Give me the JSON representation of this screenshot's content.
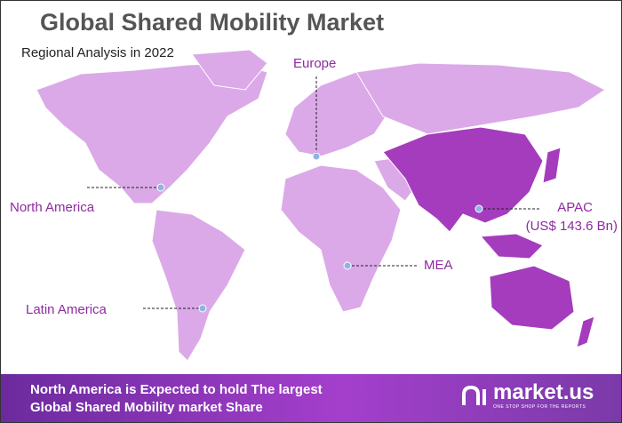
{
  "title": "Global Shared Mobility Market",
  "subtitle": "Regional Analysis in 2022",
  "regions": {
    "europe": "Europe",
    "north_america": "North America",
    "latin_america": "Latin America",
    "mea": "MEA",
    "apac": "APAC",
    "apac_value": "(US$ 143.6 Bn)"
  },
  "highlight_region": "APAC",
  "colors": {
    "land": "#dba9e8",
    "highlight": "#a43cbd",
    "label": "#8e2aa0",
    "marker": "#8fb3e6"
  },
  "banner": {
    "line1": "North America is Expected to hold The largest",
    "line2": "Global Shared Mobility market Share"
  },
  "logo": {
    "name": "market.us",
    "tagline": "ONE STOP SHOP FOR THE REPORTS"
  }
}
